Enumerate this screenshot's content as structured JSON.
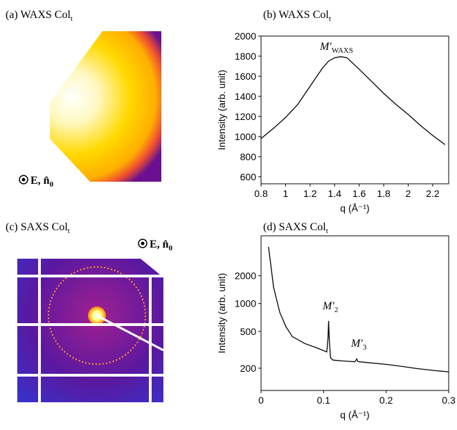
{
  "figure": {
    "panels": [
      {
        "label": "(a) WAXS Col",
        "label_sub": "t",
        "annotation": "E, n̂",
        "annotation_sub": "0"
      },
      {
        "label": "(c) SAXS Col",
        "label_sub": "t",
        "annotation": "E, n̂",
        "annotation_sub": "0"
      }
    ]
  },
  "chart_data": [
    {
      "type": "line",
      "title": "(b) WAXS Col",
      "title_sub": "t",
      "xlabel": "q (Å⁻¹)",
      "ylabel": "Intensity (arb. unit)",
      "x": [
        0.8,
        0.9,
        1.0,
        1.1,
        1.2,
        1.3,
        1.35,
        1.4,
        1.45,
        1.5,
        1.6,
        1.7,
        1.8,
        1.9,
        2.0,
        2.1,
        2.2,
        2.3
      ],
      "series": [
        {
          "name": "WAXS",
          "color": "#000000",
          "values": [
            980,
            1080,
            1190,
            1320,
            1500,
            1680,
            1750,
            1785,
            1795,
            1785,
            1670,
            1550,
            1430,
            1320,
            1220,
            1110,
            1010,
            920
          ]
        }
      ],
      "xlim": [
        0.8,
        2.33
      ],
      "ylim": [
        530,
        2000
      ],
      "xticks": [
        0.8,
        1.0,
        1.2,
        1.4,
        1.6,
        1.8,
        2.0,
        2.2
      ],
      "yticks": [
        600,
        800,
        1000,
        1200,
        1400,
        1600,
        1800,
        2000
      ],
      "annotations": [
        {
          "text": "M′",
          "sub": "WAXS"
        }
      ]
    },
    {
      "type": "line",
      "title": "(d) SAXS Col",
      "title_sub": "t",
      "xlabel": "q (Å⁻¹)",
      "ylabel": "Intensity (arb. unit)",
      "log_y": true,
      "x": [
        0.012,
        0.015,
        0.02,
        0.03,
        0.04,
        0.05,
        0.07,
        0.09,
        0.105,
        0.107,
        0.108,
        0.109,
        0.111,
        0.115,
        0.13,
        0.15,
        0.152,
        0.153,
        0.155,
        0.17,
        0.2,
        0.22,
        0.25,
        0.28,
        0.3
      ],
      "series": [
        {
          "name": "SAXS",
          "color": "#000000",
          "values": [
            4100,
            2800,
            1500,
            800,
            560,
            440,
            370,
            330,
            300,
            420,
            650,
            420,
            260,
            245,
            240,
            235,
            245,
            252,
            236,
            230,
            220,
            212,
            198,
            188,
            183
          ]
        }
      ],
      "xlim": [
        0,
        0.3
      ],
      "ylim": [
        115,
        5400
      ],
      "xticks": [
        0,
        0.1,
        0.2,
        0.3
      ],
      "yticks": [
        200,
        500,
        1000,
        2000
      ],
      "annotations": [
        {
          "text": "M′",
          "sub": "2"
        },
        {
          "text": "M′",
          "sub": "3"
        }
      ]
    }
  ]
}
